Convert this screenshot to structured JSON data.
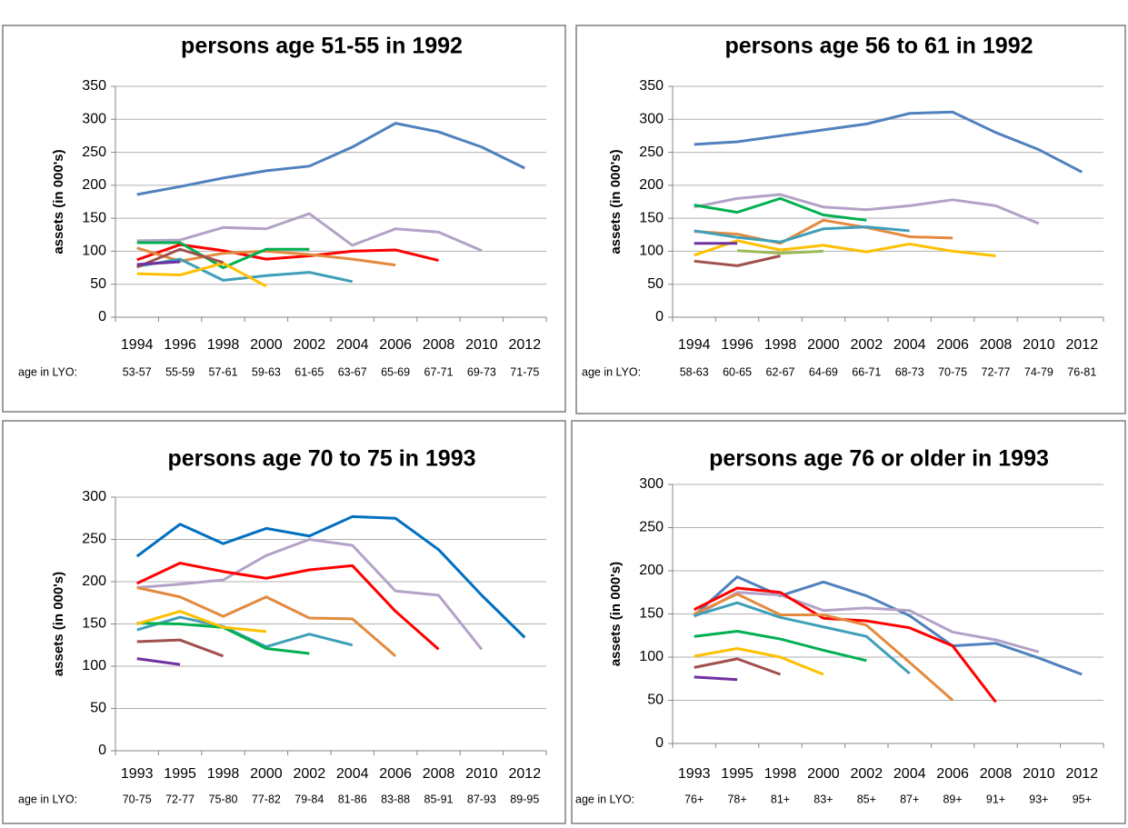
{
  "chart_data": [
    {
      "type": "line",
      "title": "persons age 51-55 in 1992",
      "y_label": "assets (in 000's)",
      "categories": [
        "1994",
        "1996",
        "1998",
        "2000",
        "2002",
        "2004",
        "2006",
        "2008",
        "2010",
        "2012"
      ],
      "age_label_title": "age in LYO:",
      "age_labels": [
        "53-57",
        "55-59",
        "57-61",
        "59-63",
        "61-65",
        "63-67",
        "65-69",
        "67-71",
        "69-73",
        "71-75"
      ],
      "ylim": [
        0,
        350
      ],
      "yticks": [
        0,
        50,
        100,
        150,
        200,
        250,
        300,
        350
      ],
      "grid": true,
      "series": [
        {
          "color": "#4f81bd",
          "values": [
            186,
            198,
            211,
            222,
            229,
            258,
            294,
            281,
            258,
            226
          ]
        },
        {
          "color": "#b3a2c7",
          "values": [
            116,
            117,
            136,
            134,
            157,
            109,
            134,
            129,
            101,
            null
          ]
        },
        {
          "color": "#ff0000",
          "values": [
            87,
            110,
            101,
            88,
            93,
            100,
            102,
            86,
            null,
            null
          ]
        },
        {
          "color": "#e38a3f",
          "values": [
            105,
            85,
            97,
            100,
            95,
            88,
            79,
            null,
            null,
            null
          ]
        },
        {
          "color": "#3f9fb8",
          "values": [
            77,
            88,
            56,
            63,
            68,
            54,
            null,
            null,
            null,
            null
          ]
        },
        {
          "color": "#00b050",
          "values": [
            113,
            113,
            75,
            103,
            103,
            null,
            null,
            null,
            null,
            null
          ]
        },
        {
          "color": "#ffc000",
          "values": [
            66,
            64,
            82,
            47,
            null,
            null,
            null,
            null,
            null,
            null
          ]
        },
        {
          "color": "#a0504d",
          "values": [
            76,
            103,
            83,
            null,
            null,
            null,
            null,
            null,
            null,
            null
          ]
        },
        {
          "color": "#7030a0",
          "values": [
            80,
            84,
            null,
            null,
            null,
            null,
            null,
            null,
            null,
            null
          ]
        }
      ]
    },
    {
      "type": "line",
      "title": "persons age 56 to 61 in 1992",
      "y_label": "assets (in 000's)",
      "categories": [
        "1994",
        "1996",
        "1998",
        "2000",
        "2002",
        "2004",
        "2006",
        "2008",
        "2010",
        "2012"
      ],
      "age_label_title": "age in LYO:",
      "age_labels": [
        "58-63",
        "60-65",
        "62-67",
        "64-69",
        "66-71",
        "68-73",
        "70-75",
        "72-77",
        "74-79",
        "76-81"
      ],
      "ylim": [
        0,
        350
      ],
      "yticks": [
        0,
        50,
        100,
        150,
        200,
        250,
        300,
        350
      ],
      "grid": true,
      "series": [
        {
          "color": "#4f81bd",
          "values": [
            262,
            266,
            275,
            284,
            293,
            309,
            311,
            280,
            254,
            220
          ]
        },
        {
          "color": "#b3a2c7",
          "values": [
            167,
            180,
            186,
            167,
            163,
            169,
            178,
            169,
            142,
            null
          ]
        },
        {
          "color": "#ffc000",
          "values": [
            94,
            116,
            102,
            109,
            99,
            111,
            100,
            93,
            null,
            null
          ]
        },
        {
          "color": "#e38a3f",
          "values": [
            130,
            126,
            112,
            147,
            136,
            122,
            120,
            null,
            null,
            null
          ]
        },
        {
          "color": "#3f9fb8",
          "values": [
            131,
            121,
            114,
            134,
            137,
            131,
            null,
            null,
            null,
            null
          ]
        },
        {
          "color": "#00b050",
          "values": [
            170,
            159,
            180,
            155,
            147,
            null,
            null,
            null,
            null,
            null
          ]
        },
        {
          "color": "#9bbb59",
          "values": [
            null,
            101,
            97,
            100,
            null,
            null,
            null,
            null,
            null,
            null
          ]
        },
        {
          "color": "#a0504d",
          "values": [
            85,
            78,
            93,
            null,
            null,
            null,
            null,
            null,
            null,
            null
          ]
        },
        {
          "color": "#7030a0",
          "values": [
            112,
            112,
            null,
            null,
            null,
            null,
            null,
            null,
            null,
            null
          ]
        }
      ]
    },
    {
      "type": "line",
      "title": "persons age 70 to 75 in 1993",
      "y_label": "assets (in 000's)",
      "categories": [
        "1993",
        "1995",
        "1998",
        "2000",
        "2002",
        "2004",
        "2006",
        "2008",
        "2010",
        "2012"
      ],
      "age_label_title": "age in LYO:",
      "age_labels": [
        "70-75",
        "72-77",
        "75-80",
        "77-82",
        "79-84",
        "81-86",
        "83-88",
        "85-91",
        "87-93",
        "89-95"
      ],
      "ylim": [
        0,
        300
      ],
      "yticks": [
        0,
        50,
        100,
        150,
        200,
        250,
        300
      ],
      "grid": true,
      "series": [
        {
          "color": "#0070c0",
          "values": [
            230,
            268,
            245,
            263,
            254,
            277,
            275,
            238,
            184,
            134
          ]
        },
        {
          "color": "#b3a2c7",
          "values": [
            193,
            197,
            202,
            231,
            250,
            243,
            189,
            184,
            120,
            null
          ]
        },
        {
          "color": "#ff0000",
          "values": [
            198,
            222,
            212,
            204,
            214,
            219,
            165,
            120,
            null,
            null
          ]
        },
        {
          "color": "#e38a3f",
          "values": [
            193,
            182,
            159,
            182,
            157,
            156,
            112,
            null,
            null,
            null
          ]
        },
        {
          "color": "#3f9fb8",
          "values": [
            143,
            158,
            147,
            123,
            138,
            125,
            null,
            null,
            null,
            null
          ]
        },
        {
          "color": "#00b050",
          "values": [
            151,
            150,
            146,
            121,
            115,
            null,
            null,
            null,
            null,
            null
          ]
        },
        {
          "color": "#ffc000",
          "values": [
            150,
            165,
            146,
            141,
            null,
            null,
            null,
            null,
            null,
            null
          ]
        },
        {
          "color": "#a0504d",
          "values": [
            129,
            131,
            112,
            null,
            null,
            null,
            null,
            null,
            null,
            null
          ]
        },
        {
          "color": "#7030a0",
          "values": [
            109,
            102,
            null,
            null,
            null,
            null,
            null,
            null,
            null,
            null
          ]
        }
      ]
    },
    {
      "type": "line",
      "title": "persons age 76 or older in 1993",
      "y_label": "assets (in 000's)",
      "categories": [
        "1993",
        "1995",
        "1998",
        "2000",
        "2002",
        "2004",
        "2006",
        "2008",
        "2010",
        "2012"
      ],
      "age_label_title": "age in LYO:",
      "age_labels": [
        "76+",
        "78+",
        "81+",
        "83+",
        "85+",
        "87+",
        "89+",
        "91+",
        "93+",
        "95+"
      ],
      "ylim": [
        0,
        300
      ],
      "yticks": [
        0,
        50,
        100,
        150,
        200,
        250,
        300
      ],
      "grid": true,
      "series": [
        {
          "color": "#4f81bd",
          "values": [
            148,
            193,
            171,
            187,
            171,
            148,
            113,
            116,
            99,
            80
          ]
        },
        {
          "color": "#b3a2c7",
          "values": [
            147,
            175,
            172,
            154,
            157,
            154,
            129,
            120,
            106,
            null
          ]
        },
        {
          "color": "#ff0000",
          "values": [
            155,
            180,
            175,
            145,
            142,
            134,
            113,
            48,
            null,
            null
          ]
        },
        {
          "color": "#e38a3f",
          "values": [
            150,
            173,
            149,
            149,
            137,
            94,
            50,
            null,
            null,
            null
          ]
        },
        {
          "color": "#3f9fb8",
          "values": [
            148,
            163,
            146,
            135,
            124,
            81,
            null,
            null,
            null,
            null
          ]
        },
        {
          "color": "#00b050",
          "values": [
            124,
            130,
            121,
            108,
            96,
            null,
            null,
            null,
            null,
            null
          ]
        },
        {
          "color": "#ffc000",
          "values": [
            101,
            110,
            100,
            80,
            null,
            null,
            null,
            null,
            null,
            null
          ]
        },
        {
          "color": "#a0504d",
          "values": [
            88,
            98,
            80,
            null,
            null,
            null,
            null,
            null,
            null,
            null
          ]
        },
        {
          "color": "#7030a0",
          "values": [
            77,
            74,
            null,
            null,
            null,
            null,
            null,
            null,
            null,
            null
          ]
        }
      ]
    }
  ]
}
